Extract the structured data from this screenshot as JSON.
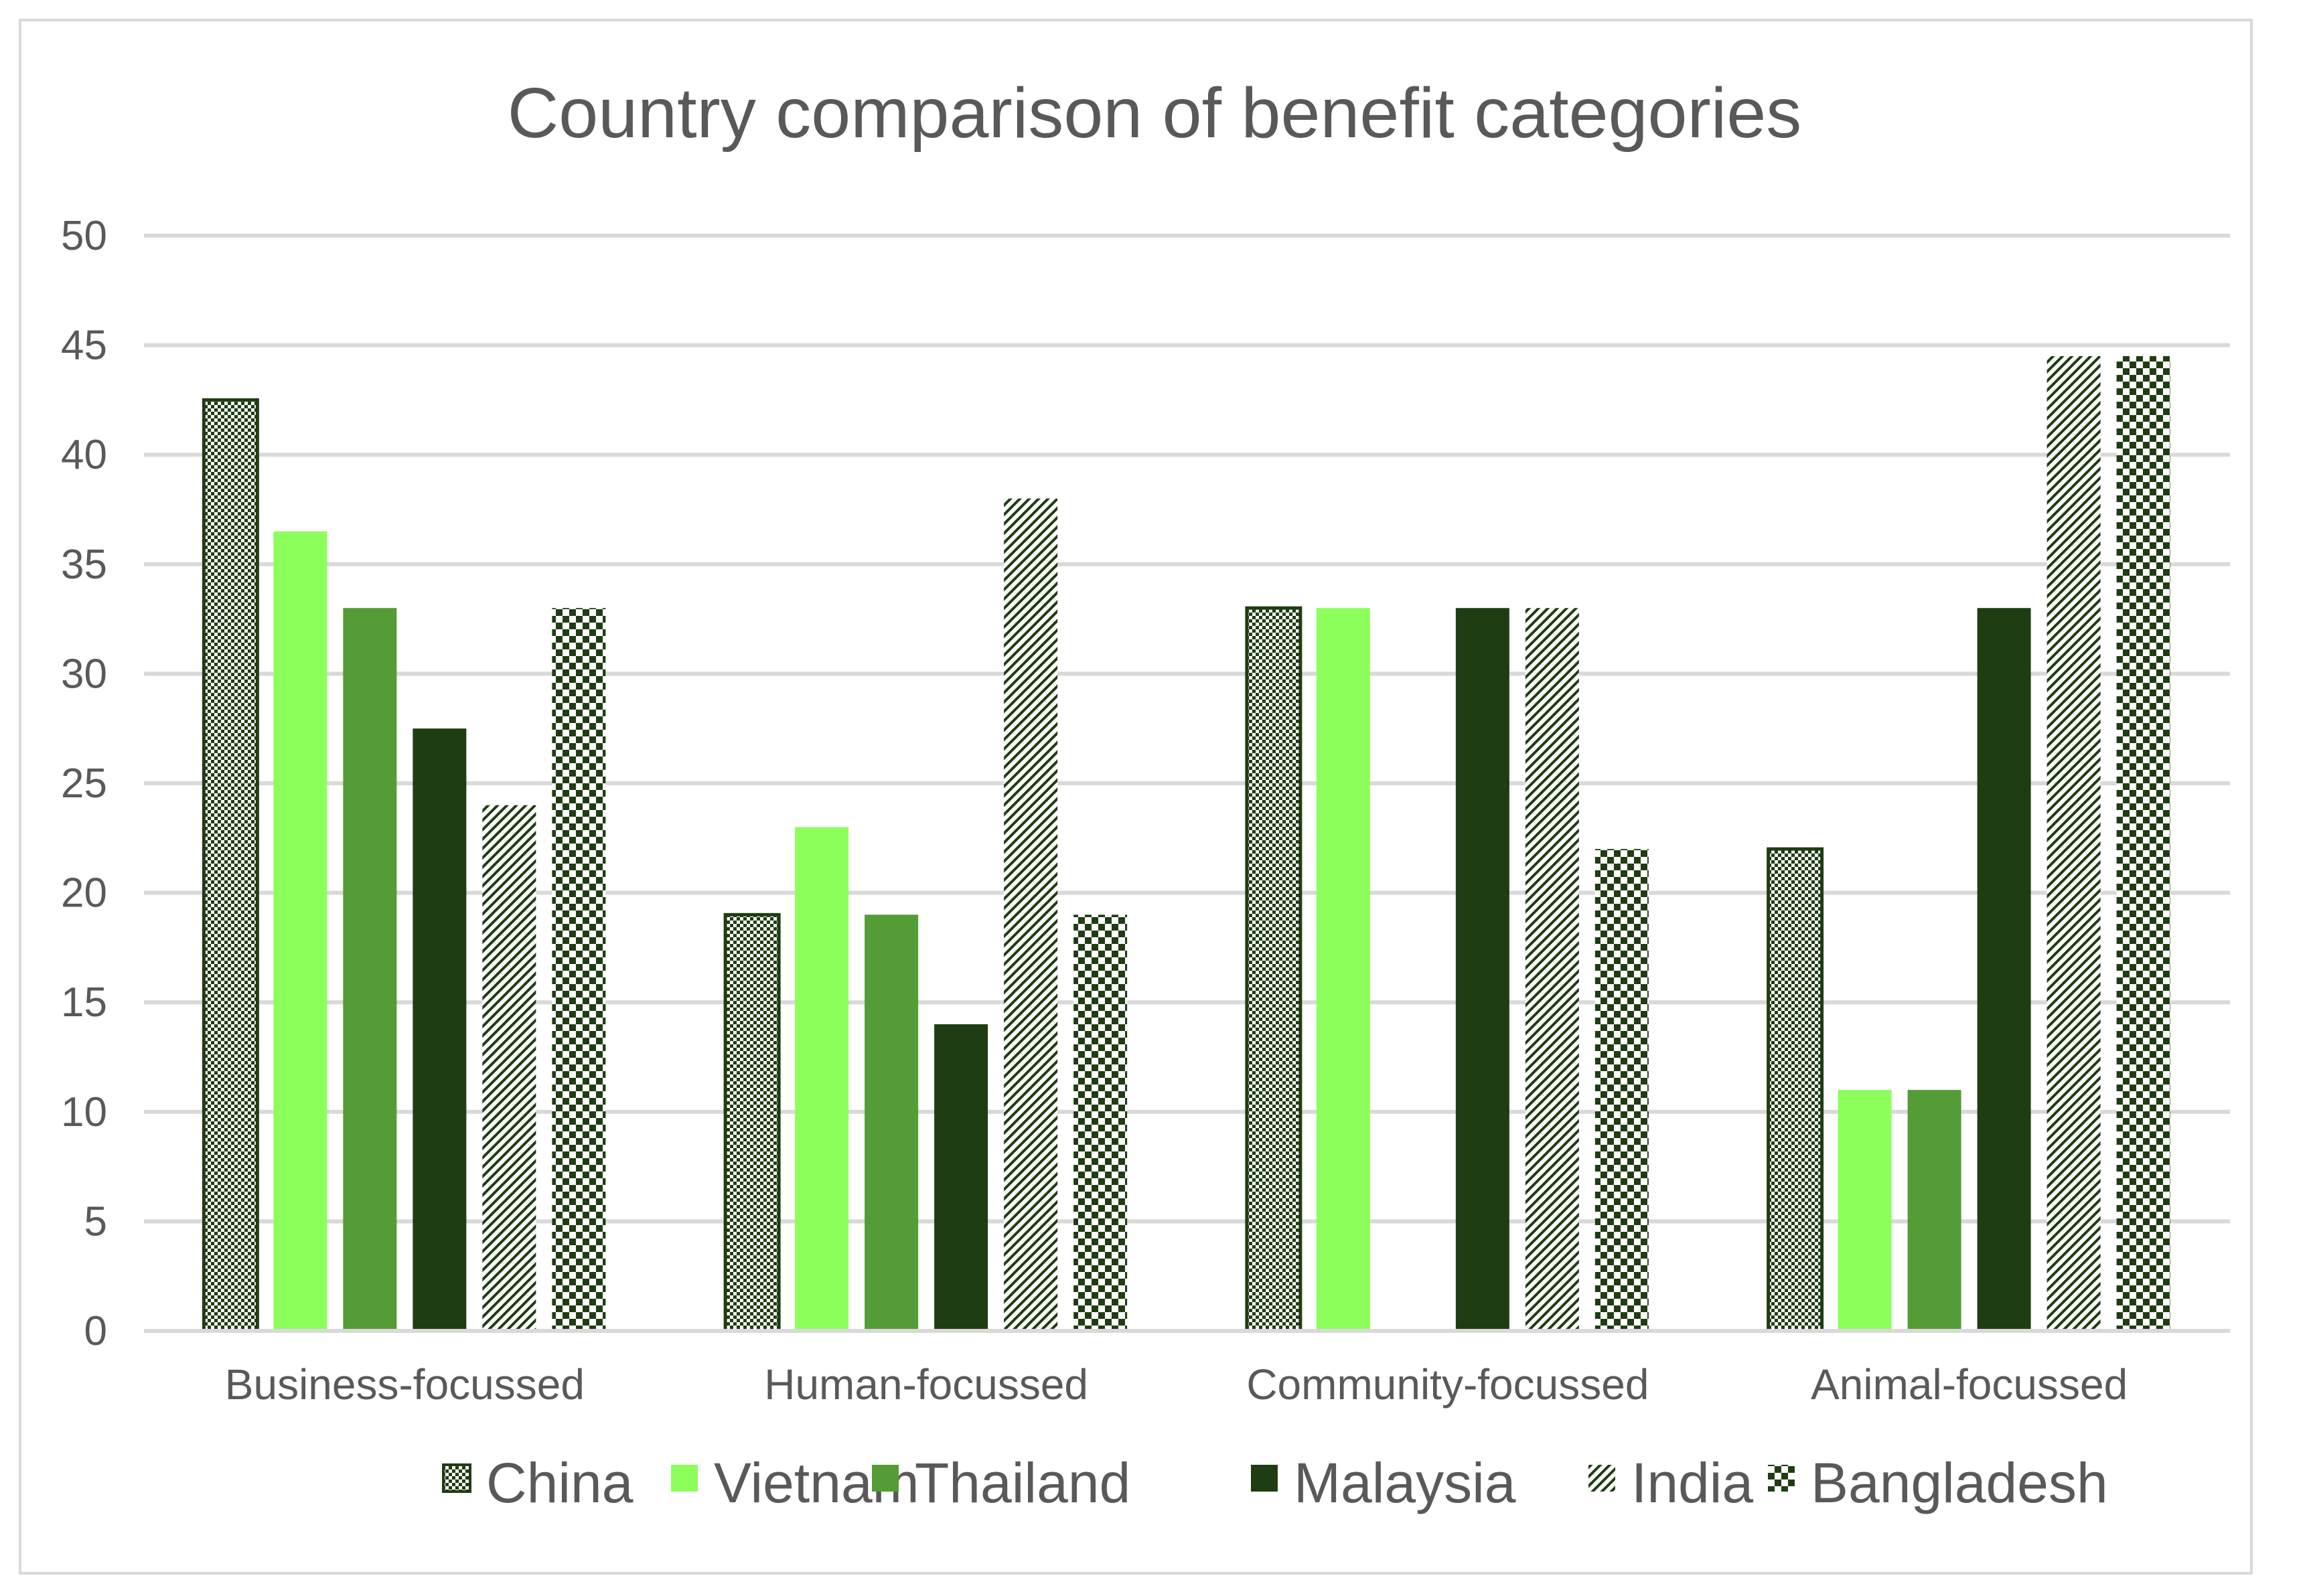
{
  "chart_data": {
    "type": "bar",
    "title": "Country comparison of benefit categories",
    "categories": [
      "Business-focussed",
      "Human-focussed",
      "Community-focussed",
      "Animal-focussed"
    ],
    "series": [
      {
        "name": "China",
        "values": [
          42.5,
          19,
          33,
          22
        ],
        "color": "#1f3d12",
        "pattern": "fine-check"
      },
      {
        "name": "Vietnam",
        "values": [
          36.5,
          23,
          33,
          11
        ],
        "color": "#8cff5a",
        "pattern": "solid"
      },
      {
        "name": "Thailand",
        "values": [
          33,
          19,
          0,
          11
        ],
        "color": "#549c35",
        "pattern": "solid"
      },
      {
        "name": "Malaysia",
        "values": [
          27.5,
          14,
          33,
          33
        ],
        "color": "#1f3d12",
        "pattern": "solid"
      },
      {
        "name": "India",
        "values": [
          24,
          38,
          33,
          44.5
        ],
        "color": "#1f3d12",
        "pattern": "diagonal"
      },
      {
        "name": "Bangladesh",
        "values": [
          33,
          19,
          22,
          44.5
        ],
        "color": "#1f3d12",
        "pattern": "large-check"
      }
    ],
    "yticks": [
      "0",
      "5",
      "10",
      "15",
      "20",
      "25",
      "30",
      "35",
      "40",
      "45",
      "50"
    ],
    "ylim": [
      0,
      50
    ],
    "grid": true,
    "legend_position": "bottom",
    "xlabel": "",
    "ylabel": ""
  }
}
